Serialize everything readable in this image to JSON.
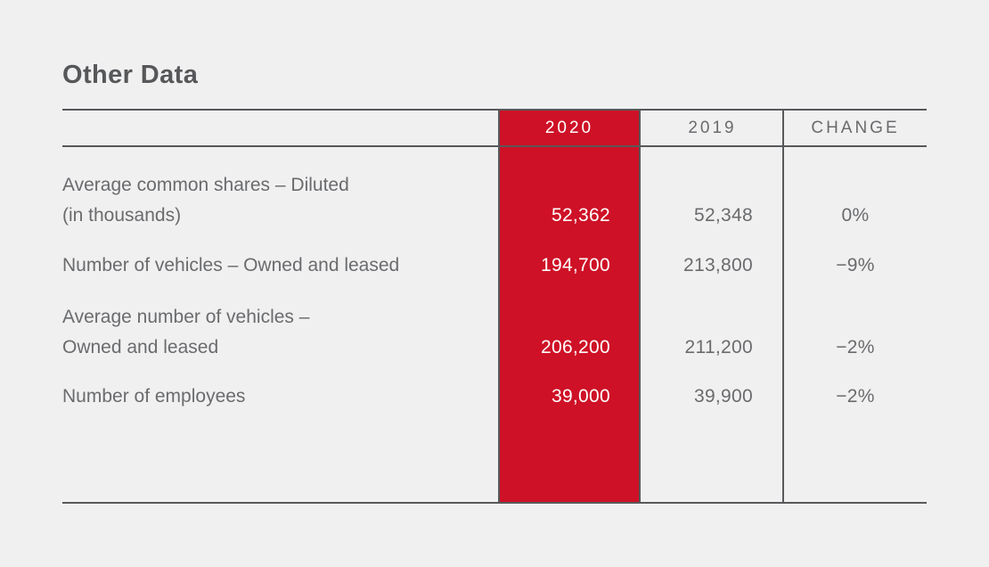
{
  "title": "Other Data",
  "colors": {
    "accent_red": "#ce1126",
    "line_gray": "#58595b",
    "text_gray": "#6a6b6d",
    "title_gray": "#565759",
    "page_bg": "#f0f0f1",
    "value_white": "#ffffff"
  },
  "table": {
    "header": {
      "col_2020": "2020",
      "col_2019": "2019",
      "col_change": "CHANGE"
    },
    "rows": [
      {
        "label_line1": "Average common shares – Diluted",
        "label_line2": "(in thousands)",
        "v2020": "52,362",
        "v2019": "52,348",
        "change": "0%"
      },
      {
        "label_line1": "Number of vehicles – Owned and leased",
        "label_line2": "",
        "v2020": "194,700",
        "v2019": "213,800",
        "change": "−9%"
      },
      {
        "label_line1": "Average number of vehicles –",
        "label_line2": "Owned and leased",
        "v2020": "206,200",
        "v2019": "211,200",
        "change": "−2%"
      },
      {
        "label_line1": "Number of employees",
        "label_line2": "",
        "v2020": "39,000",
        "v2019": "39,900",
        "change": "−2%"
      }
    ]
  },
  "chart_data": {
    "type": "table",
    "title": "Other Data",
    "columns": [
      "",
      "2020",
      "2019",
      "CHANGE"
    ],
    "rows": [
      [
        "Average common shares – Diluted (in thousands)",
        "52,362",
        "52,348",
        "0%"
      ],
      [
        "Number of vehicles – Owned and leased",
        "194,700",
        "213,800",
        "−9%"
      ],
      [
        "Average number of vehicles – Owned and leased",
        "206,200",
        "211,200",
        "−2%"
      ],
      [
        "Number of employees",
        "39,000",
        "39,900",
        "−2%"
      ]
    ]
  }
}
